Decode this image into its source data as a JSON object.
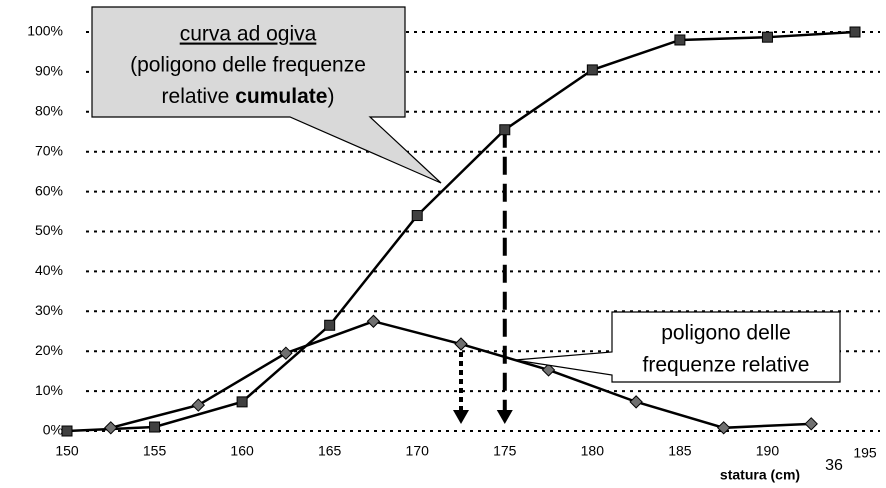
{
  "chart_data": {
    "type": "line",
    "x_label": "statura (cm)",
    "page_number": "36",
    "xlim": [
      150,
      195
    ],
    "xticks": [
      150,
      155,
      160,
      165,
      170,
      175,
      180,
      185,
      190,
      195
    ],
    "ylim": [
      0,
      100
    ],
    "yticks": [
      {
        "value": 0,
        "label": "0%"
      },
      {
        "value": 10,
        "label": "10%"
      },
      {
        "value": 20,
        "label": "20%"
      },
      {
        "value": 30,
        "label": "30%"
      },
      {
        "value": 40,
        "label": "40%"
      },
      {
        "value": 50,
        "label": "50%"
      },
      {
        "value": 60,
        "label": "60%"
      },
      {
        "value": 70,
        "label": "70%"
      },
      {
        "value": 80,
        "label": "80%"
      },
      {
        "value": 90,
        "label": "90%"
      },
      {
        "value": 100,
        "label": "100%"
      }
    ],
    "grid": true,
    "series": [
      {
        "marker": "square",
        "color": "#404040",
        "x": [
          150,
          155,
          160,
          165,
          170,
          175,
          180,
          185,
          190,
          195
        ],
        "values": [
          0,
          1,
          7.3,
          26.5,
          54,
          75.5,
          90.5,
          98,
          98.7,
          100
        ]
      },
      {
        "marker": "diamond",
        "color": "#707070",
        "x": [
          152.5,
          157.5,
          162.5,
          167.5,
          172.5,
          177.5,
          182.5,
          187.5,
          192.5
        ],
        "values": [
          0.8,
          6.5,
          19.5,
          27.5,
          21.8,
          15.3,
          7.3,
          0.8,
          1.8
        ]
      }
    ],
    "callouts": [
      {
        "title": "curva ad ogiva",
        "line2": "(poligono delle frequenze",
        "line3_start": "relative",
        "line3_bold": "cumulate",
        "line3_end": ")"
      },
      {
        "line1": "poligono delle",
        "line2": "frequenze relative"
      }
    ]
  }
}
